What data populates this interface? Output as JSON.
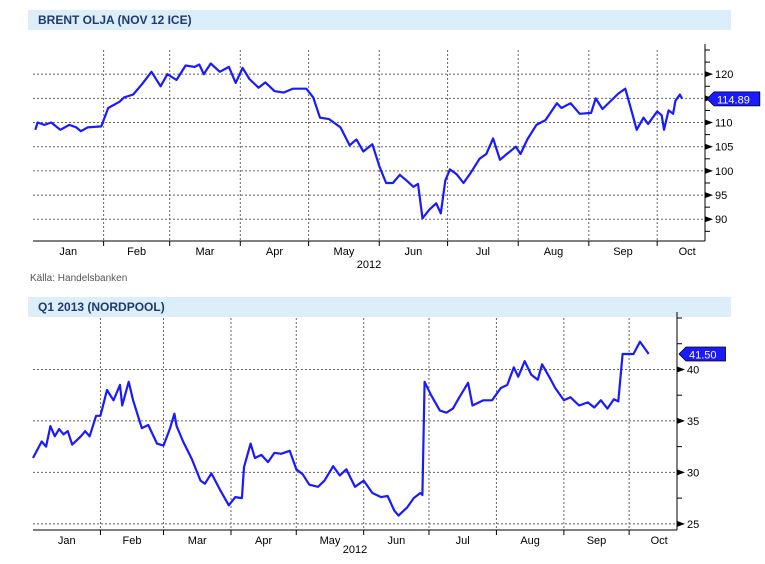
{
  "source": "Källa: Handelsbanken",
  "chart_data": [
    {
      "type": "line",
      "title": "BRENT OLJA (NOV 12 ICE)",
      "xlabel": "2012",
      "x_ticks": [
        "Jan",
        "Feb",
        "Mar",
        "Apr",
        "May",
        "Jun",
        "Jul",
        "Aug",
        "Sep",
        "Oct"
      ],
      "y_ticks": [
        90,
        95,
        100,
        105,
        110,
        115,
        120
      ],
      "y_tick_labels": [
        "90",
        "95",
        "100",
        "105",
        "110",
        "",
        "120"
      ],
      "xlim": [
        "2012-01-01",
        "2012-10-22"
      ],
      "ylim": [
        85.5,
        125
      ],
      "grid": true,
      "line_color": "#1a1aff",
      "last_value_label": "114.89",
      "points": [
        [
          "2012-01-02",
          108.5
        ],
        [
          "2012-01-03",
          110
        ],
        [
          "2012-01-06",
          109.5
        ],
        [
          "2012-01-09",
          110
        ],
        [
          "2012-01-13",
          108.5
        ],
        [
          "2012-01-17",
          109.5
        ],
        [
          "2012-01-20",
          109
        ],
        [
          "2012-01-22",
          108.2
        ],
        [
          "2012-01-25",
          109
        ],
        [
          "2012-01-31",
          109.2
        ],
        [
          "2012-02-03",
          113
        ],
        [
          "2012-02-08",
          114.3
        ],
        [
          "2012-02-10",
          115.2
        ],
        [
          "2012-02-14",
          115.8
        ],
        [
          "2012-02-18",
          118
        ],
        [
          "2012-02-22",
          120.5
        ],
        [
          "2012-02-26",
          117.5
        ],
        [
          "2012-02-29",
          120
        ],
        [
          "2012-03-04",
          118.8
        ],
        [
          "2012-03-08",
          121.8
        ],
        [
          "2012-03-12",
          121.5
        ],
        [
          "2012-03-14",
          122
        ],
        [
          "2012-03-16",
          120
        ],
        [
          "2012-03-19",
          122.2
        ],
        [
          "2012-03-23",
          120.5
        ],
        [
          "2012-03-27",
          121.5
        ],
        [
          "2012-03-30",
          118.2
        ],
        [
          "2012-04-02",
          121.3
        ],
        [
          "2012-04-05",
          119
        ],
        [
          "2012-04-09",
          117.2
        ],
        [
          "2012-04-12",
          118.3
        ],
        [
          "2012-04-16",
          116.5
        ],
        [
          "2012-04-20",
          116.2
        ],
        [
          "2012-04-24",
          117
        ],
        [
          "2012-04-30",
          117
        ],
        [
          "2012-05-03",
          115.2
        ],
        [
          "2012-05-06",
          111
        ],
        [
          "2012-05-10",
          110.7
        ],
        [
          "2012-05-15",
          109
        ],
        [
          "2012-05-19",
          105.3
        ],
        [
          "2012-05-22",
          106.5
        ],
        [
          "2012-05-25",
          104
        ],
        [
          "2012-05-29",
          105.5
        ],
        [
          "2012-06-01",
          101
        ],
        [
          "2012-06-04",
          97.5
        ],
        [
          "2012-06-07",
          97.5
        ],
        [
          "2012-06-10",
          99.2
        ],
        [
          "2012-06-13",
          98
        ],
        [
          "2012-06-16",
          96.7
        ],
        [
          "2012-06-18",
          97.3
        ],
        [
          "2012-06-20",
          90.2
        ],
        [
          "2012-06-23",
          92
        ],
        [
          "2012-06-26",
          93.3
        ],
        [
          "2012-06-28",
          91.2
        ],
        [
          "2012-06-30",
          98
        ],
        [
          "2012-07-02",
          100.3
        ],
        [
          "2012-07-05",
          99.3
        ],
        [
          "2012-07-08",
          97.5
        ],
        [
          "2012-07-11",
          99.5
        ],
        [
          "2012-07-15",
          102.5
        ],
        [
          "2012-07-18",
          103.5
        ],
        [
          "2012-07-21",
          106.7
        ],
        [
          "2012-07-24",
          102.3
        ],
        [
          "2012-07-27",
          103.5
        ],
        [
          "2012-07-31",
          105
        ],
        [
          "2012-08-02",
          103.5
        ],
        [
          "2012-08-05",
          106.5
        ],
        [
          "2012-08-09",
          109.5
        ],
        [
          "2012-08-13",
          110.5
        ],
        [
          "2012-08-18",
          114
        ],
        [
          "2012-08-20",
          113
        ],
        [
          "2012-08-24",
          114
        ],
        [
          "2012-08-28",
          111.8
        ],
        [
          "2012-09-02",
          112
        ],
        [
          "2012-09-04",
          115
        ],
        [
          "2012-09-07",
          112.8
        ],
        [
          "2012-09-14",
          116
        ],
        [
          "2012-09-17",
          117
        ],
        [
          "2012-09-20",
          112
        ],
        [
          "2012-09-22",
          108.5
        ],
        [
          "2012-09-25",
          111
        ],
        [
          "2012-09-27",
          109.7
        ],
        [
          "2012-10-01",
          112.3
        ],
        [
          "2012-10-03",
          111.5
        ],
        [
          "2012-10-04",
          108.5
        ],
        [
          "2012-10-06",
          112.5
        ],
        [
          "2012-10-08",
          111.8
        ],
        [
          "2012-10-09",
          114.5
        ],
        [
          "2012-10-11",
          115.8
        ],
        [
          "2012-10-12",
          114.89
        ]
      ]
    },
    {
      "type": "line",
      "title": "Q1 2013 (NORDPOOL)",
      "xlabel": "2012",
      "x_ticks": [
        "Jan",
        "Feb",
        "Mar",
        "Apr",
        "May",
        "Jun",
        "Jul",
        "Aug",
        "Sep",
        "Oct"
      ],
      "y_ticks": [
        25,
        30,
        35,
        40
      ],
      "y_tick_labels": [
        "25",
        "30",
        "35",
        "40"
      ],
      "xlim": [
        "2012-01-01",
        "2012-10-23"
      ],
      "ylim": [
        24.4,
        45
      ],
      "grid": true,
      "line_color": "#1a1aff",
      "last_value_label": "41.50",
      "points": [
        [
          "2012-01-01",
          31.4
        ],
        [
          "2012-01-05",
          33
        ],
        [
          "2012-01-07",
          32.5
        ],
        [
          "2012-01-09",
          34.5
        ],
        [
          "2012-01-11",
          33.5
        ],
        [
          "2012-01-13",
          34.2
        ],
        [
          "2012-01-15",
          33.7
        ],
        [
          "2012-01-17",
          34
        ],
        [
          "2012-01-19",
          32.7
        ],
        [
          "2012-01-23",
          33.5
        ],
        [
          "2012-01-25",
          34
        ],
        [
          "2012-01-27",
          33.5
        ],
        [
          "2012-01-30",
          35.5
        ],
        [
          "2012-02-01",
          35.5
        ],
        [
          "2012-02-04",
          38
        ],
        [
          "2012-02-07",
          37
        ],
        [
          "2012-02-10",
          38.5
        ],
        [
          "2012-02-11",
          36.5
        ],
        [
          "2012-02-14",
          38.8
        ],
        [
          "2012-02-16",
          37
        ],
        [
          "2012-02-20",
          34.3
        ],
        [
          "2012-02-23",
          34.6
        ],
        [
          "2012-02-27",
          32.8
        ],
        [
          "2012-03-01",
          32.6
        ],
        [
          "2012-03-04",
          34.3
        ],
        [
          "2012-03-06",
          35.7
        ],
        [
          "2012-03-07",
          34.5
        ],
        [
          "2012-03-10",
          33
        ],
        [
          "2012-03-14",
          31.3
        ],
        [
          "2012-03-18",
          29.2
        ],
        [
          "2012-03-20",
          28.9
        ],
        [
          "2012-03-23",
          29.9
        ],
        [
          "2012-03-27",
          28.3
        ],
        [
          "2012-03-31",
          26.8
        ],
        [
          "2012-04-03",
          27.6
        ],
        [
          "2012-04-06",
          27.5
        ],
        [
          "2012-04-07",
          30.5
        ],
        [
          "2012-04-10",
          32.8
        ],
        [
          "2012-04-12",
          31.4
        ],
        [
          "2012-04-15",
          31.7
        ],
        [
          "2012-04-18",
          31
        ],
        [
          "2012-04-21",
          31.9
        ],
        [
          "2012-04-24",
          31.8
        ],
        [
          "2012-04-28",
          32.1
        ],
        [
          "2012-05-01",
          30.3
        ],
        [
          "2012-05-04",
          29.8
        ],
        [
          "2012-05-07",
          28.8
        ],
        [
          "2012-05-11",
          28.6
        ],
        [
          "2012-05-14",
          29.2
        ],
        [
          "2012-05-18",
          30.6
        ],
        [
          "2012-05-21",
          29.7
        ],
        [
          "2012-05-24",
          30.3
        ],
        [
          "2012-05-28",
          28.6
        ],
        [
          "2012-06-01",
          29.2
        ],
        [
          "2012-06-05",
          28
        ],
        [
          "2012-06-09",
          27.6
        ],
        [
          "2012-06-12",
          27.7
        ],
        [
          "2012-06-15",
          26.3
        ],
        [
          "2012-06-17",
          25.8
        ],
        [
          "2012-06-21",
          26.6
        ],
        [
          "2012-06-24",
          27.5
        ],
        [
          "2012-06-27",
          28
        ],
        [
          "2012-06-28",
          27.8
        ],
        [
          "2012-06-29",
          38.8
        ],
        [
          "2012-07-02",
          37.5
        ],
        [
          "2012-07-06",
          36
        ],
        [
          "2012-07-09",
          35.8
        ],
        [
          "2012-07-12",
          36.2
        ],
        [
          "2012-07-15",
          37.3
        ],
        [
          "2012-07-19",
          38.7
        ],
        [
          "2012-07-21",
          36.5
        ],
        [
          "2012-07-26",
          37
        ],
        [
          "2012-07-30",
          37
        ],
        [
          "2012-08-03",
          38.2
        ],
        [
          "2012-08-06",
          38.5
        ],
        [
          "2012-08-09",
          40.2
        ],
        [
          "2012-08-11",
          39.3
        ],
        [
          "2012-08-14",
          40.8
        ],
        [
          "2012-08-17",
          39.5
        ],
        [
          "2012-08-20",
          39
        ],
        [
          "2012-08-22",
          40.5
        ],
        [
          "2012-08-26",
          39
        ],
        [
          "2012-08-28",
          38.2
        ],
        [
          "2012-09-01",
          37
        ],
        [
          "2012-09-04",
          37.3
        ],
        [
          "2012-09-08",
          36.5
        ],
        [
          "2012-09-12",
          36.8
        ],
        [
          "2012-09-15",
          36.3
        ],
        [
          "2012-09-18",
          37
        ],
        [
          "2012-09-21",
          36.2
        ],
        [
          "2012-09-24",
          37.1
        ],
        [
          "2012-09-26",
          36.9
        ],
        [
          "2012-09-28",
          41.5
        ],
        [
          "2012-10-03",
          41.5
        ],
        [
          "2012-10-06",
          42.7
        ],
        [
          "2012-10-09",
          41.8
        ],
        [
          "2012-10-10",
          41.5
        ]
      ]
    }
  ]
}
